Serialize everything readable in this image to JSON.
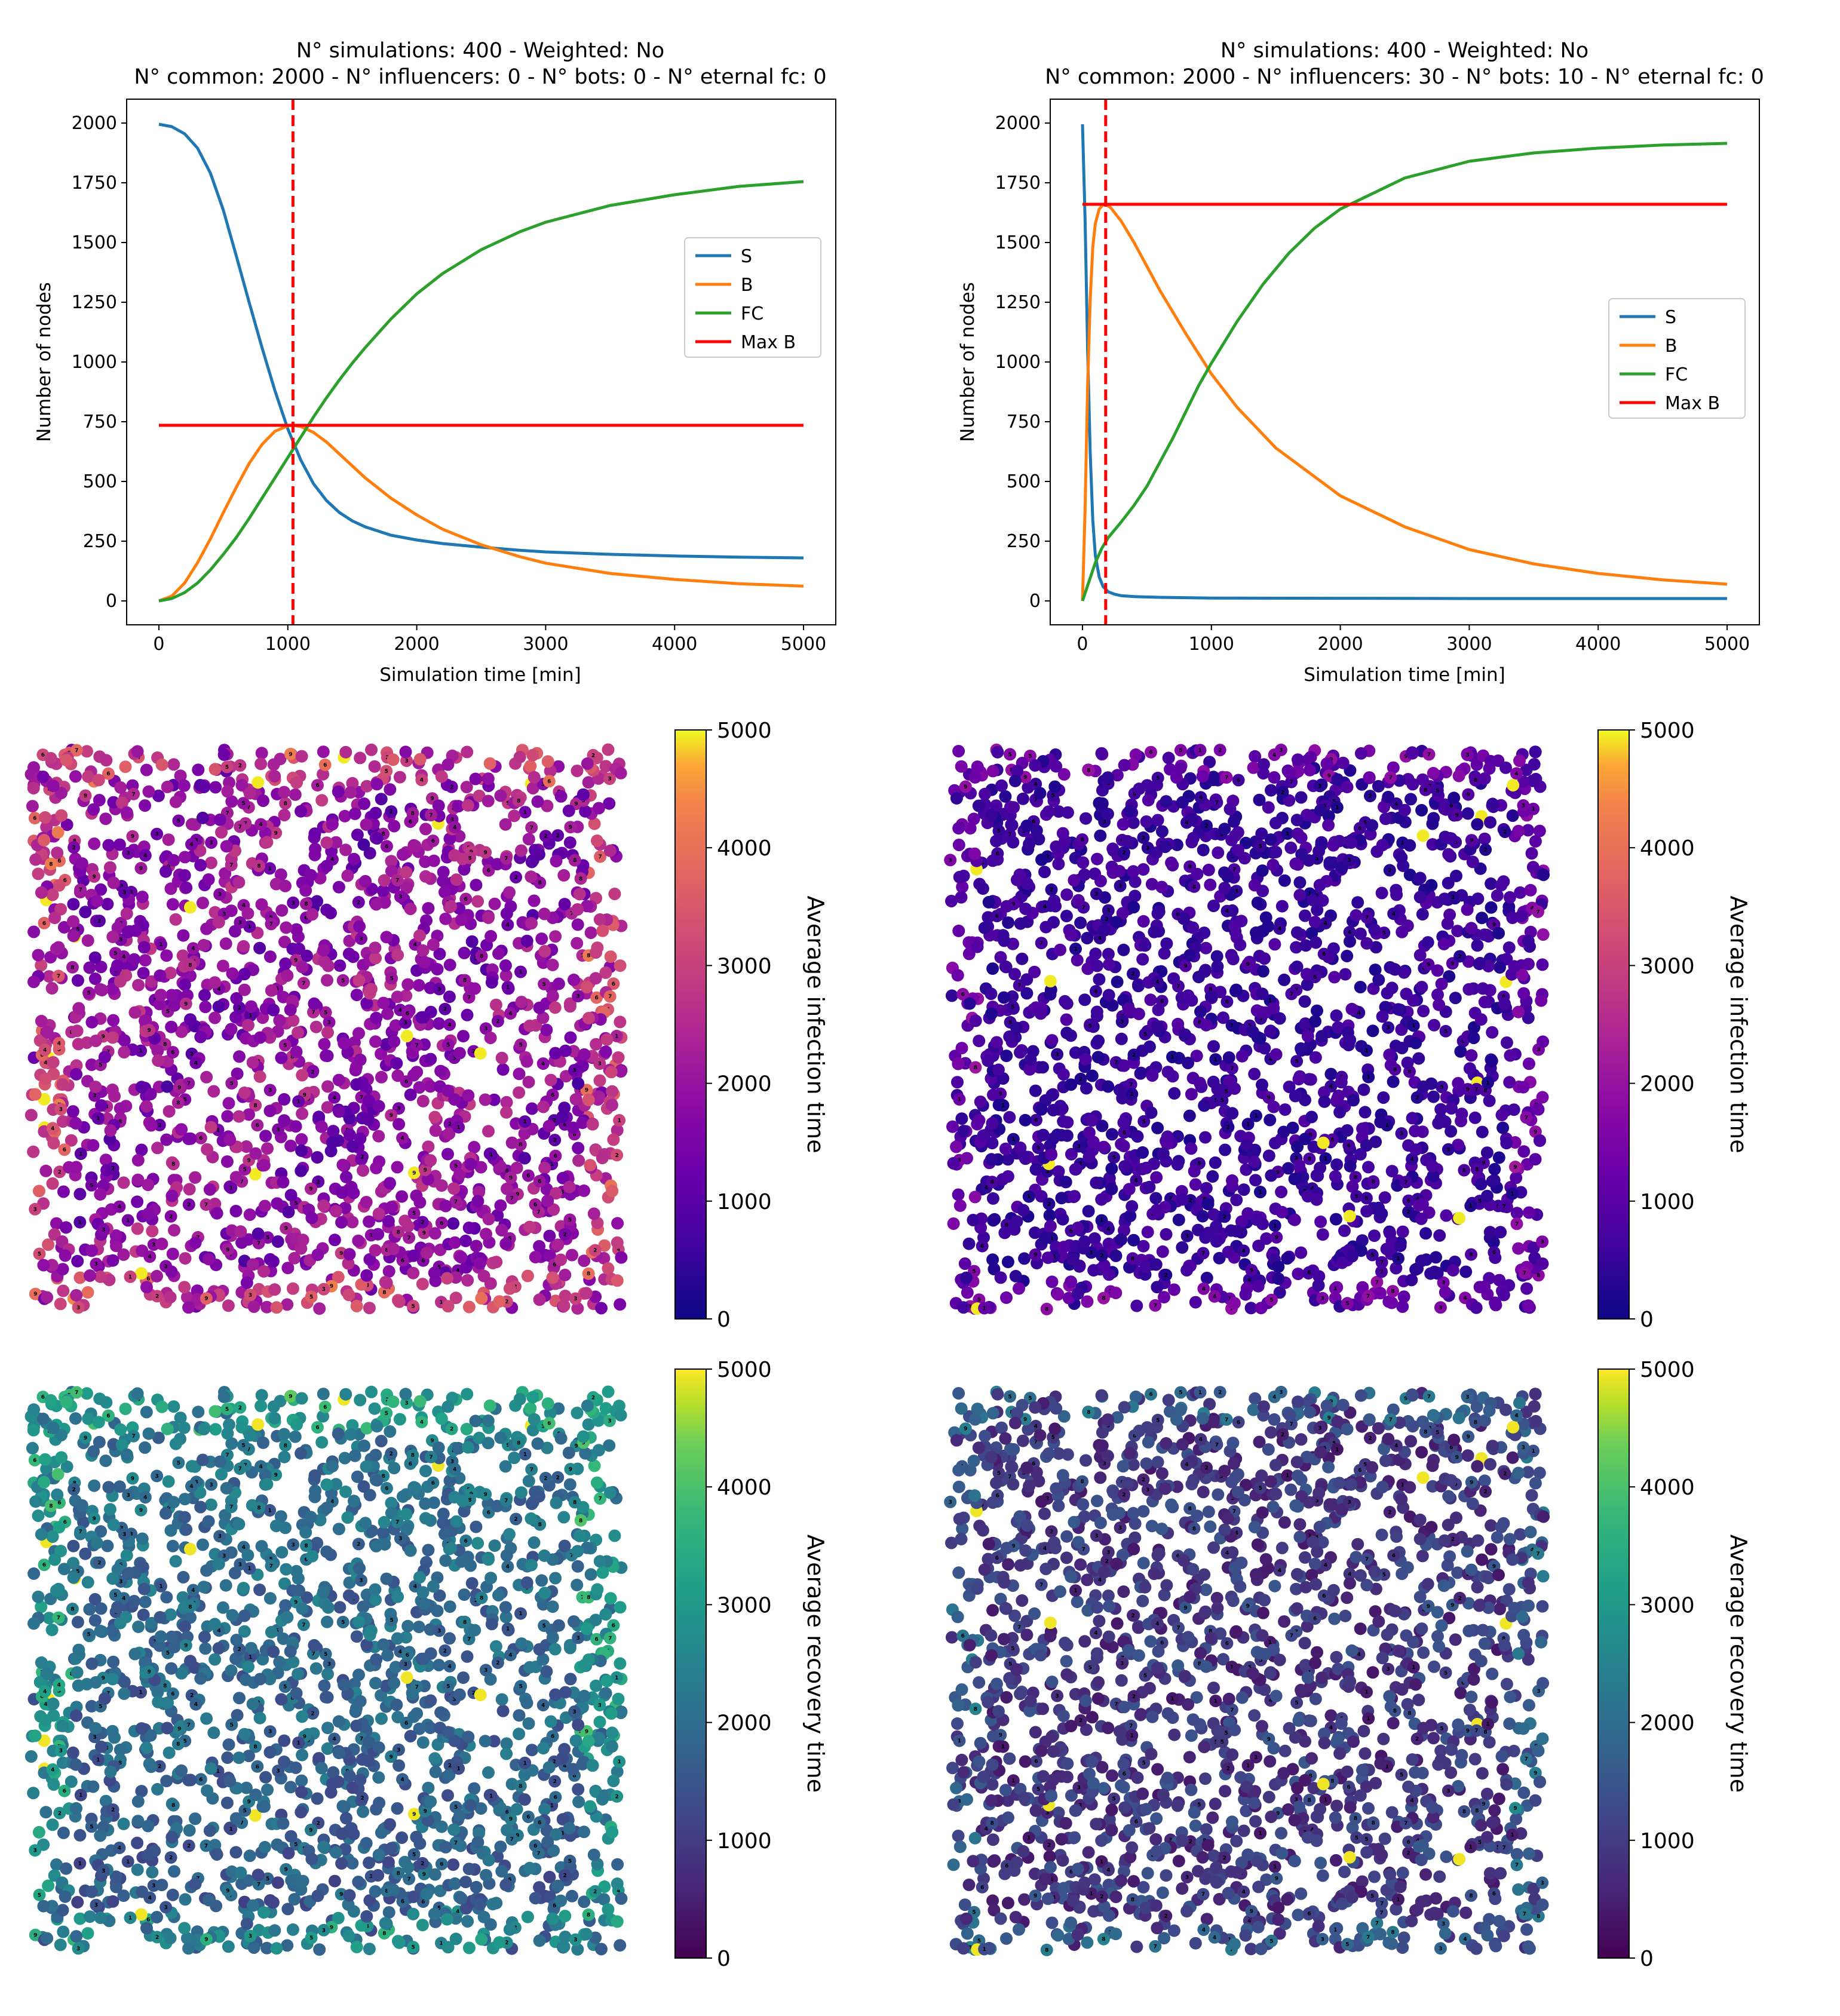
{
  "chart_data": [
    {
      "type": "line",
      "title_line1": "N° simulations: 400 - Weighted: No",
      "title_line2": "N° common: 2000 - N° influencers: 0 - N° bots: 0 - N° eternal fc: 0",
      "xlabel": "Simulation time [min]",
      "ylabel": "Number of nodes",
      "xlim": [
        -250,
        5250
      ],
      "ylim": [
        -100,
        2100
      ],
      "xticks": [
        0,
        1000,
        2000,
        3000,
        4000,
        5000
      ],
      "yticks": [
        0,
        250,
        500,
        750,
        1000,
        1250,
        1500,
        1750,
        2000
      ],
      "peak_time": 1040,
      "max_b": 735,
      "legend_position": "center-right",
      "series": [
        {
          "name": "S",
          "color": "#1f77b4",
          "x": [
            0,
            100,
            200,
            300,
            400,
            500,
            600,
            700,
            800,
            900,
            1000,
            1100,
            1200,
            1300,
            1400,
            1500,
            1600,
            1800,
            2000,
            2200,
            2500,
            2800,
            3000,
            3500,
            4000,
            4500,
            5000
          ],
          "y": [
            1995,
            1985,
            1955,
            1895,
            1790,
            1635,
            1445,
            1250,
            1060,
            880,
            720,
            590,
            490,
            420,
            370,
            335,
            310,
            275,
            255,
            240,
            225,
            212,
            205,
            195,
            188,
            183,
            180
          ]
        },
        {
          "name": "B",
          "color": "#ff7f0e",
          "x": [
            0,
            100,
            200,
            300,
            400,
            500,
            600,
            700,
            800,
            900,
            1000,
            1040,
            1100,
            1200,
            1300,
            1400,
            1500,
            1600,
            1800,
            2000,
            2200,
            2500,
            2800,
            3000,
            3500,
            4000,
            4500,
            5000
          ],
          "y": [
            0,
            20,
            75,
            160,
            260,
            370,
            475,
            575,
            655,
            710,
            733,
            735,
            730,
            705,
            665,
            615,
            565,
            515,
            430,
            360,
            300,
            235,
            185,
            158,
            115,
            90,
            72,
            62
          ]
        },
        {
          "name": "FC",
          "color": "#2ca02c",
          "x": [
            0,
            100,
            200,
            300,
            400,
            500,
            600,
            700,
            800,
            900,
            1000,
            1100,
            1200,
            1300,
            1400,
            1500,
            1600,
            1800,
            2000,
            2200,
            2500,
            2800,
            3000,
            3500,
            4000,
            4500,
            5000
          ],
          "y": [
            0,
            10,
            35,
            75,
            130,
            195,
            265,
            345,
            430,
            515,
            600,
            685,
            770,
            850,
            925,
            995,
            1060,
            1180,
            1285,
            1370,
            1470,
            1545,
            1585,
            1655,
            1700,
            1735,
            1755
          ]
        },
        {
          "name": "Max B",
          "color": "#ff0000",
          "x": [
            0,
            5000
          ],
          "y": [
            735,
            735
          ]
        }
      ]
    },
    {
      "type": "line",
      "title_line1": "N° simulations: 400 - Weighted: No",
      "title_line2": "N° common: 2000 - N° influencers: 30 - N° bots: 10 - N° eternal fc: 0",
      "xlabel": "Simulation time [min]",
      "ylabel": "Number of nodes",
      "xlim": [
        -250,
        5250
      ],
      "ylim": [
        -100,
        2100
      ],
      "xticks": [
        0,
        1000,
        2000,
        3000,
        4000,
        5000
      ],
      "yticks": [
        0,
        250,
        500,
        750,
        1000,
        1250,
        1500,
        1750,
        2000
      ],
      "peak_time": 180,
      "max_b": 1660,
      "legend_position": "center-right",
      "series": [
        {
          "name": "S",
          "color": "#1f77b4",
          "x": [
            0,
            20,
            40,
            60,
            80,
            100,
            130,
            160,
            200,
            250,
            300,
            400,
            600,
            1000,
            2000,
            3000,
            4000,
            5000
          ],
          "y": [
            1995,
            1600,
            1050,
            620,
            340,
            190,
            100,
            60,
            38,
            28,
            22,
            18,
            15,
            12,
            11,
            10,
            10,
            10
          ]
        },
        {
          "name": "B",
          "color": "#ff7f0e",
          "x": [
            0,
            20,
            40,
            60,
            80,
            100,
            130,
            160,
            180,
            220,
            300,
            400,
            500,
            600,
            800,
            1000,
            1200,
            1500,
            2000,
            2500,
            3000,
            3500,
            4000,
            4500,
            5000
          ],
          "y": [
            0,
            380,
            900,
            1260,
            1480,
            1580,
            1640,
            1658,
            1660,
            1645,
            1590,
            1500,
            1400,
            1300,
            1120,
            950,
            810,
            640,
            440,
            310,
            215,
            155,
            115,
            88,
            70
          ]
        },
        {
          "name": "FC",
          "color": "#2ca02c",
          "x": [
            0,
            50,
            100,
            150,
            200,
            300,
            400,
            500,
            600,
            700,
            800,
            900,
            1000,
            1200,
            1400,
            1600,
            1800,
            2000,
            2500,
            3000,
            3500,
            4000,
            4500,
            5000
          ],
          "y": [
            0,
            80,
            160,
            220,
            265,
            330,
            400,
            480,
            580,
            680,
            790,
            900,
            995,
            1170,
            1325,
            1455,
            1560,
            1640,
            1770,
            1840,
            1875,
            1895,
            1908,
            1915
          ]
        },
        {
          "name": "Max B",
          "color": "#ff0000",
          "x": [
            0,
            5000
          ],
          "y": [
            1660,
            1660
          ]
        }
      ]
    },
    {
      "type": "scatter",
      "colormap": "plasma",
      "colorbar_label": "Average infection time",
      "colorbar_ticks": [
        "0",
        "1000",
        "2000",
        "3000",
        "4000",
        "5000"
      ],
      "colorbar_range": [
        0,
        5000
      ],
      "seed": 11,
      "node_count": 2000,
      "description": "network nodes colored by average infection time"
    },
    {
      "type": "scatter",
      "colormap": "plasma",
      "colorbar_label": "Average infection time",
      "colorbar_ticks": [
        "0",
        "1000",
        "2000",
        "3000",
        "4000",
        "5000"
      ],
      "colorbar_range": [
        0,
        5000
      ],
      "seed": 23,
      "node_count": 2000,
      "description": "network nodes colored by average infection time"
    },
    {
      "type": "scatter",
      "colormap": "viridis",
      "colorbar_label": "Average recovery time",
      "colorbar_ticks": [
        "0",
        "1000",
        "2000",
        "3000",
        "4000",
        "5000"
      ],
      "colorbar_range": [
        0,
        5000
      ],
      "seed": 11,
      "node_count": 2000,
      "description": "network nodes colored by average recovery time"
    },
    {
      "type": "scatter",
      "colormap": "viridis",
      "colorbar_label": "Average recovery time",
      "colorbar_ticks": [
        "0",
        "1000",
        "2000",
        "3000",
        "4000",
        "5000"
      ],
      "colorbar_range": [
        0,
        5000
      ],
      "seed": 23,
      "node_count": 2000,
      "description": "network nodes colored by average recovery time"
    }
  ]
}
